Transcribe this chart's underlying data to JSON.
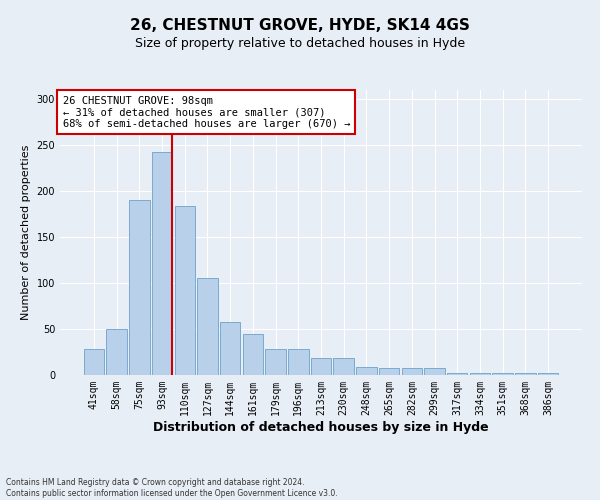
{
  "title": "26, CHESTNUT GROVE, HYDE, SK14 4GS",
  "subtitle": "Size of property relative to detached houses in Hyde",
  "xlabel": "Distribution of detached houses by size in Hyde",
  "ylabel": "Number of detached properties",
  "categories": [
    "41sqm",
    "58sqm",
    "75sqm",
    "93sqm",
    "110sqm",
    "127sqm",
    "144sqm",
    "161sqm",
    "179sqm",
    "196sqm",
    "213sqm",
    "230sqm",
    "248sqm",
    "265sqm",
    "282sqm",
    "299sqm",
    "317sqm",
    "334sqm",
    "351sqm",
    "368sqm",
    "386sqm"
  ],
  "values": [
    28,
    50,
    190,
    243,
    184,
    106,
    58,
    45,
    28,
    28,
    19,
    19,
    9,
    8,
    8,
    8,
    2,
    2,
    2,
    2,
    2
  ],
  "bar_color": "#b8d0ea",
  "bar_edge_color": "#7aaad0",
  "bg_color": "#e8eef5",
  "grid_color": "#ffffff",
  "vline_x_index": 3,
  "vline_color": "#cc0000",
  "annotation_text": "26 CHESTNUT GROVE: 98sqm\n← 31% of detached houses are smaller (307)\n68% of semi-detached houses are larger (670) →",
  "annotation_box_color": "white",
  "annotation_box_edge": "#cc0000",
  "footnote1": "Contains HM Land Registry data © Crown copyright and database right 2024.",
  "footnote2": "Contains public sector information licensed under the Open Government Licence v3.0.",
  "ylim": [
    0,
    310
  ],
  "title_fontsize": 11,
  "subtitle_fontsize": 9,
  "tick_fontsize": 7,
  "ylabel_fontsize": 8,
  "xlabel_fontsize": 9,
  "annot_fontsize": 7.5
}
